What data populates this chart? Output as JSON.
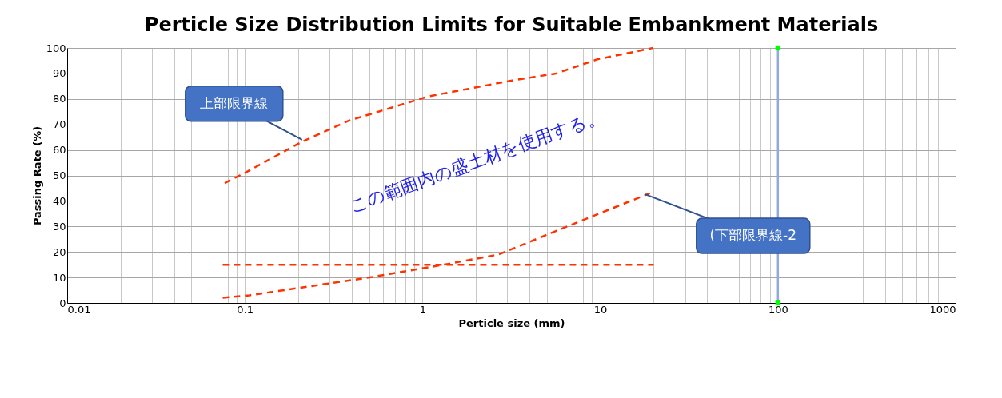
{
  "chart_data": {
    "type": "line",
    "title": "Perticle Size Distribution Limits for Suitable Embankment Materials",
    "xlabel": "Perticle size (mm)",
    "ylabel": "Passing Rate (%)",
    "series": [
      {
        "color": "#ff3300",
        "line_style": "dashed",
        "x": [
          0.077,
          0.1,
          0.207,
          0.386,
          1.08,
          3.06,
          5.65,
          9.6,
          19.8
        ],
        "values": [
          47,
          51,
          63,
          71.5,
          81,
          87,
          90,
          95.5,
          100
        ]
      },
      {
        "color": "#ff3300",
        "line_style": "dashed",
        "x": [
          0.075,
          0.106,
          0.504,
          1.42,
          2.68,
          6.74,
          19
        ],
        "values": [
          2,
          3,
          10,
          15.4,
          19,
          30.4,
          43
        ]
      },
      {
        "color": "#ff3300",
        "line_style": "dashed",
        "x": [
          0.075,
          20
        ],
        "values": [
          15,
          15
        ]
      },
      {
        "color": "#8faadc",
        "line_style": "solid",
        "x": [
          100,
          100
        ],
        "values": [
          0,
          100
        ]
      },
      {
        "type": "scatter",
        "marker": "square",
        "color": "#00ff00",
        "x": [
          100,
          100
        ],
        "values": [
          0,
          100
        ]
      }
    ],
    "xlim": [
      0.01,
      1000
    ],
    "ylim": [
      0,
      100
    ],
    "log": "x",
    "xticks": [
      0.01,
      {
        "value": 0.02,
        "label": null
      },
      {
        "value": 0.03,
        "label": null
      },
      {
        "value": 0.04,
        "label": null
      },
      {
        "value": 0.05,
        "label": null
      },
      {
        "value": 0.06,
        "label": null
      },
      {
        "value": 0.07,
        "label": null
      },
      {
        "value": 0.08,
        "label": null
      },
      {
        "value": 0.09,
        "label": null
      },
      0.1,
      {
        "value": 0.2,
        "label": null
      },
      {
        "value": 0.3,
        "label": null
      },
      {
        "value": 0.4,
        "label": null
      },
      {
        "value": 0.5,
        "label": null
      },
      {
        "value": 0.6,
        "label": null
      },
      {
        "value": 0.7,
        "label": null
      },
      {
        "value": 0.8,
        "label": null
      },
      {
        "value": 0.9,
        "label": null
      },
      1,
      {
        "value": 2,
        "label": null
      },
      {
        "value": 3,
        "label": null
      },
      {
        "value": 4,
        "label": null
      },
      {
        "value": 5,
        "label": null
      },
      {
        "value": 6,
        "label": null
      },
      {
        "value": 7,
        "label": null
      },
      {
        "value": 8,
        "label": null
      },
      {
        "value": 9,
        "label": null
      },
      10,
      {
        "value": 20,
        "label": null
      },
      {
        "value": 30,
        "label": null
      },
      {
        "value": 40,
        "label": null
      },
      {
        "value": 50,
        "label": null
      },
      {
        "value": 60,
        "label": null
      },
      {
        "value": 70,
        "label": null
      },
      {
        "value": 80,
        "label": null
      },
      {
        "value": 90,
        "label": null
      },
      100,
      {
        "value": 200,
        "label": null
      },
      {
        "value": 300,
        "label": null
      },
      {
        "value": 400,
        "label": null
      },
      {
        "value": 500,
        "label": null
      },
      {
        "value": 600,
        "label": null
      },
      {
        "value": 700,
        "label": null
      },
      {
        "value": 800,
        "label": null
      },
      {
        "value": 900,
        "label": null
      },
      1000
    ],
    "yticks": [
      0,
      10,
      20,
      30,
      40,
      50,
      60,
      70,
      80,
      90,
      100
    ],
    "grid": true,
    "legend": false,
    "annotations": [
      {
        "text": "上部限界線",
        "x": 0.21,
        "y": 64
      },
      {
        "text": "(下部限界線-2",
        "x": 17.9,
        "y": 42.6
      },
      "この範囲内の盛土材を使用する。"
    ]
  }
}
